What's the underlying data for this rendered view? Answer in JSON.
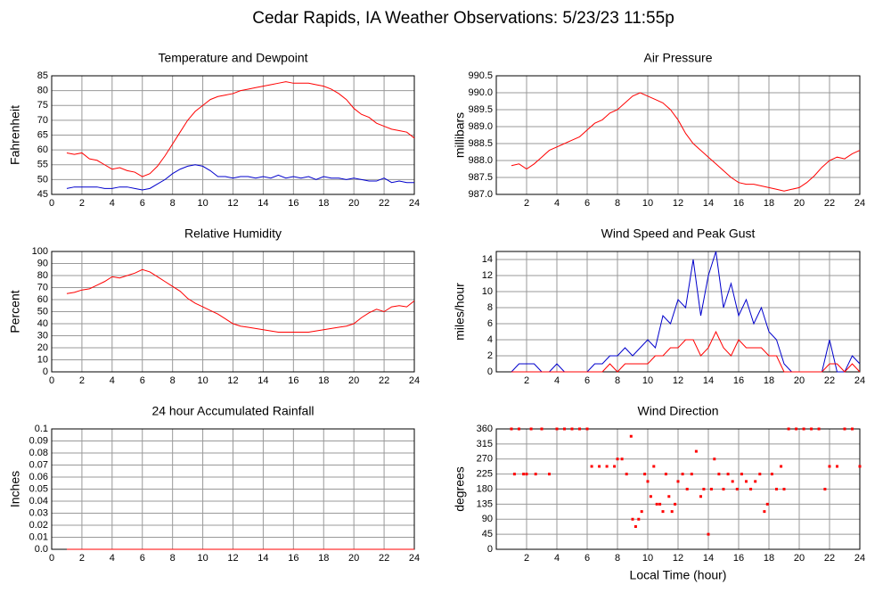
{
  "title": "Cedar Rapids, IA Weather Observations: 5/23/23 11:55p",
  "chart_data": [
    {
      "type": "line",
      "title": "Temperature and Dewpoint",
      "ylabel": "Fahrenheit",
      "xlim": [
        0,
        24
      ],
      "xticks": [
        0,
        2,
        4,
        6,
        8,
        10,
        12,
        14,
        16,
        18,
        20,
        22,
        24
      ],
      "ylim": [
        45,
        85
      ],
      "yticks": [
        45,
        50,
        55,
        60,
        65,
        70,
        75,
        80,
        85
      ],
      "grid": true,
      "x": [
        1,
        1.5,
        2,
        2.5,
        3,
        3.5,
        4,
        4.5,
        5,
        5.5,
        6,
        6.5,
        7,
        7.5,
        8,
        8.5,
        9,
        9.5,
        10,
        10.5,
        11,
        11.5,
        12,
        12.5,
        13,
        13.5,
        14,
        14.5,
        15,
        15.5,
        16,
        16.5,
        17,
        17.5,
        18,
        18.5,
        19,
        19.5,
        20,
        20.5,
        21,
        21.5,
        22,
        22.5,
        23,
        23.5,
        24
      ],
      "series": [
        {
          "color": "#ff0000",
          "values": [
            59,
            58.5,
            59,
            57,
            56.5,
            55,
            53.5,
            54,
            53,
            52.5,
            51,
            52,
            54.5,
            58,
            62,
            66,
            70,
            73,
            75,
            77,
            78,
            78.5,
            79,
            80,
            80.5,
            81,
            81.5,
            82,
            82.5,
            83,
            82.5,
            82.5,
            82.5,
            82,
            81.5,
            80.5,
            79,
            77,
            74,
            72,
            71,
            69,
            68,
            67,
            66.5,
            66,
            64
          ]
        },
        {
          "color": "#0000cc",
          "values": [
            47,
            47.5,
            47.5,
            47.5,
            47.5,
            47,
            47,
            47.5,
            47.5,
            47,
            46.5,
            47,
            48.5,
            50,
            52,
            53.5,
            54.5,
            55,
            54.5,
            53,
            51,
            51,
            50.5,
            51,
            51,
            50.5,
            51,
            50.5,
            51.5,
            50.5,
            51,
            50.5,
            51,
            50,
            51,
            50.5,
            50.5,
            50,
            50.5,
            50,
            49.5,
            49.5,
            50.5,
            49,
            49.5,
            49,
            49
          ]
        }
      ]
    },
    {
      "type": "line",
      "title": "Air Pressure",
      "ylabel": "millibars",
      "xlim": [
        0,
        24
      ],
      "xticks": [
        2,
        4,
        6,
        8,
        10,
        12,
        14,
        16,
        18,
        20,
        22,
        24
      ],
      "ylim": [
        987,
        990.5
      ],
      "yticks": [
        {
          "value": 987,
          "label": "987.0"
        },
        987.5,
        {
          "value": 988,
          "label": "988.0"
        },
        988.5,
        {
          "value": 989,
          "label": "989.0"
        },
        989.5,
        {
          "value": 990,
          "label": "990.0"
        },
        990.5
      ],
      "grid": true,
      "x": [
        1,
        1.5,
        2,
        2.5,
        3,
        3.5,
        4,
        4.5,
        5,
        5.5,
        6,
        6.5,
        7,
        7.5,
        8,
        8.5,
        9,
        9.5,
        10,
        10.5,
        11,
        11.5,
        12,
        12.5,
        13,
        13.5,
        14,
        14.5,
        15,
        15.5,
        16,
        16.5,
        17,
        17.5,
        18,
        18.5,
        19,
        19.5,
        20,
        20.5,
        21,
        21.5,
        22,
        22.5,
        23,
        23.5,
        24
      ],
      "series": [
        {
          "color": "#ff0000",
          "values": [
            987.85,
            987.9,
            987.75,
            987.9,
            988.1,
            988.3,
            988.4,
            988.5,
            988.6,
            988.7,
            988.9,
            989.1,
            989.2,
            989.4,
            989.5,
            989.7,
            989.9,
            990.0,
            989.9,
            989.8,
            989.7,
            989.5,
            989.2,
            988.8,
            988.5,
            988.3,
            988.1,
            987.9,
            987.7,
            987.5,
            987.35,
            987.3,
            987.3,
            987.25,
            987.2,
            987.15,
            987.1,
            987.15,
            987.2,
            987.35,
            987.55,
            987.8,
            988.0,
            988.1,
            988.05,
            988.2,
            988.3
          ]
        }
      ]
    },
    {
      "type": "line",
      "title": "Relative Humidity",
      "ylabel": "Percent",
      "xlim": [
        0,
        24
      ],
      "xticks": [
        0,
        2,
        4,
        6,
        8,
        10,
        12,
        14,
        16,
        18,
        20,
        22,
        24
      ],
      "ylim": [
        0,
        100
      ],
      "yticks": [
        0,
        10,
        20,
        30,
        40,
        50,
        60,
        70,
        80,
        90,
        100
      ],
      "grid": true,
      "x": [
        1,
        1.5,
        2,
        2.5,
        3,
        3.5,
        4,
        4.5,
        5,
        5.5,
        6,
        6.5,
        7,
        7.5,
        8,
        8.5,
        9,
        9.5,
        10,
        10.5,
        11,
        11.5,
        12,
        12.5,
        13,
        13.5,
        14,
        14.5,
        15,
        15.5,
        16,
        16.5,
        17,
        17.5,
        18,
        18.5,
        19,
        19.5,
        20,
        20.5,
        21,
        21.5,
        22,
        22.5,
        23,
        23.5,
        24
      ],
      "series": [
        {
          "color": "#ff0000",
          "values": [
            65,
            66,
            68,
            69,
            72,
            75,
            79,
            78,
            80,
            82,
            85,
            83,
            79,
            75,
            71,
            67,
            61,
            57,
            54,
            51,
            48,
            44,
            40,
            38,
            37,
            36,
            35,
            34,
            33,
            33,
            33,
            33,
            33,
            34,
            35,
            36,
            37,
            38,
            40,
            45,
            49,
            52,
            50,
            54,
            55,
            54,
            59
          ]
        }
      ]
    },
    {
      "type": "line",
      "title": "Wind Speed and Peak Gust",
      "ylabel": "miles/hour",
      "xlim": [
        0,
        24
      ],
      "xticks": [
        2,
        4,
        6,
        8,
        10,
        12,
        14,
        16,
        18,
        20,
        22,
        24
      ],
      "ylim": [
        0,
        15
      ],
      "yticks": [
        0,
        2,
        4,
        6,
        8,
        10,
        12,
        14
      ],
      "grid": true,
      "x": [
        1,
        1.5,
        2,
        2.5,
        3,
        3.5,
        4,
        4.5,
        5,
        5.5,
        6,
        6.5,
        7,
        7.5,
        8,
        8.5,
        9,
        9.5,
        10,
        10.5,
        11,
        11.5,
        12,
        12.5,
        13,
        13.5,
        14,
        14.5,
        15,
        15.5,
        16,
        16.5,
        17,
        17.5,
        18,
        18.5,
        19,
        19.5,
        20,
        20.5,
        21,
        21.5,
        22,
        22.5,
        23,
        23.5,
        24
      ],
      "series": [
        {
          "color": "#0000cc",
          "values": [
            0,
            1,
            1,
            1,
            0,
            0,
            1,
            0,
            0,
            0,
            0,
            1,
            1,
            2,
            2,
            3,
            2,
            3,
            4,
            3,
            7,
            6,
            9,
            8,
            14,
            7,
            12,
            15,
            8,
            11,
            7,
            9,
            6,
            8,
            5,
            4,
            1,
            0,
            0,
            0,
            0,
            0,
            4,
            0,
            0,
            2,
            1
          ]
        },
        {
          "color": "#ff0000",
          "values": [
            0,
            0,
            0,
            0,
            0,
            0,
            0,
            0,
            0,
            0,
            0,
            0,
            0,
            1,
            0,
            1,
            1,
            1,
            1,
            2,
            2,
            3,
            3,
            4,
            4,
            2,
            3,
            5,
            3,
            2,
            4,
            3,
            3,
            3,
            2,
            2,
            0,
            0,
            0,
            0,
            0,
            0,
            1,
            1,
            0,
            1,
            0
          ]
        }
      ]
    },
    {
      "type": "line",
      "title": "24 hour Accumulated Rainfall",
      "ylabel": "Inches",
      "xlim": [
        0,
        24
      ],
      "xticks": [
        0,
        2,
        4,
        6,
        8,
        10,
        12,
        14,
        16,
        18,
        20,
        22,
        24
      ],
      "ylim": [
        0,
        0.1
      ],
      "yticks": [
        {
          "value": 0,
          "label": "0.0"
        },
        0.01,
        0.02,
        0.03,
        0.04,
        0.05,
        0.06,
        0.07,
        0.08,
        0.09,
        0.1
      ],
      "grid": true,
      "x": [
        1,
        24
      ],
      "series": [
        {
          "color": "#ff0000",
          "values": [
            0,
            0
          ]
        }
      ]
    },
    {
      "type": "scatter",
      "title": "Wind Direction",
      "ylabel": "degrees",
      "xlabel": "Local Time (hour)",
      "xlim": [
        0,
        24
      ],
      "xticks": [
        2,
        4,
        6,
        8,
        10,
        12,
        14,
        16,
        18,
        20,
        22,
        24
      ],
      "ylim": [
        0,
        360
      ],
      "yticks": [
        0,
        45,
        90,
        135,
        180,
        225,
        270,
        315,
        360
      ],
      "grid": true,
      "x": [
        1,
        1.2,
        1.5,
        1.8,
        2,
        2.3,
        2.6,
        3,
        3.5,
        4,
        4.5,
        5,
        5.5,
        6,
        6.3,
        6.8,
        7.3,
        7.8,
        8,
        8.3,
        8.6,
        8.9,
        9,
        9.2,
        9.4,
        9.6,
        9.8,
        10,
        10.2,
        10.4,
        10.6,
        10.8,
        11,
        11.2,
        11.4,
        11.6,
        11.8,
        12,
        12.3,
        12.6,
        12.9,
        13.2,
        13.5,
        13.7,
        14,
        14.2,
        14.4,
        14.7,
        15,
        15.3,
        15.6,
        15.9,
        16.2,
        16.5,
        16.8,
        17.1,
        17.4,
        17.7,
        17.9,
        18.2,
        18.5,
        18.8,
        19,
        19.3,
        19.8,
        20.3,
        20.8,
        21.3,
        21.7,
        22,
        22.5,
        23,
        23.5,
        24
      ],
      "series": [
        {
          "color": "#ff0000",
          "values": [
            360,
            225,
            360,
            225,
            225,
            360,
            225,
            360,
            225,
            360,
            360,
            360,
            360,
            360,
            248,
            248,
            248,
            248,
            270,
            270,
            225,
            338,
            90,
            68,
            90,
            113,
            225,
            203,
            158,
            248,
            135,
            135,
            113,
            225,
            158,
            113,
            135,
            203,
            225,
            180,
            225,
            293,
            158,
            180,
            45,
            180,
            270,
            225,
            180,
            225,
            203,
            180,
            225,
            203,
            180,
            203,
            225,
            113,
            135,
            225,
            180,
            248,
            180,
            360,
            360,
            360,
            360,
            360,
            180,
            248,
            248,
            360,
            360,
            248
          ]
        }
      ]
    }
  ]
}
